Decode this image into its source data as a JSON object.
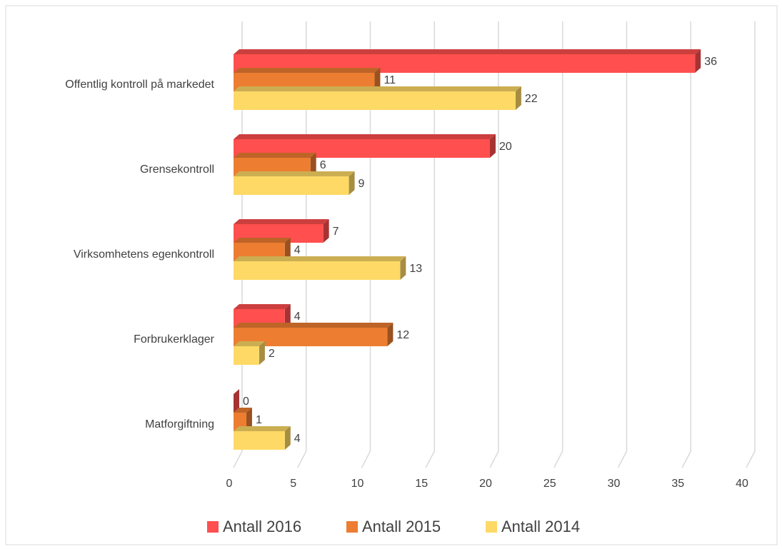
{
  "chart_data": {
    "type": "bar",
    "orientation": "horizontal",
    "categories": [
      "Offentlig kontroll på markedet",
      "Grensekontroll",
      "Virksomhetens egenkontroll",
      "Forbrukerklager",
      "Matforgiftning"
    ],
    "series": [
      {
        "name": "Antall 2016",
        "color": "#ff4f4f",
        "values": [
          36,
          20,
          7,
          4,
          0
        ]
      },
      {
        "name": "Antall 2015",
        "color": "#ed7d31",
        "values": [
          11,
          6,
          4,
          12,
          1
        ]
      },
      {
        "name": "Antall 2014",
        "color": "#ffd966",
        "values": [
          22,
          9,
          13,
          2,
          4
        ]
      }
    ],
    "xlim": [
      0,
      40
    ],
    "xticks": [
      0,
      5,
      10,
      15,
      20,
      25,
      30,
      35,
      40
    ],
    "grid": true,
    "legend": "bottom"
  }
}
